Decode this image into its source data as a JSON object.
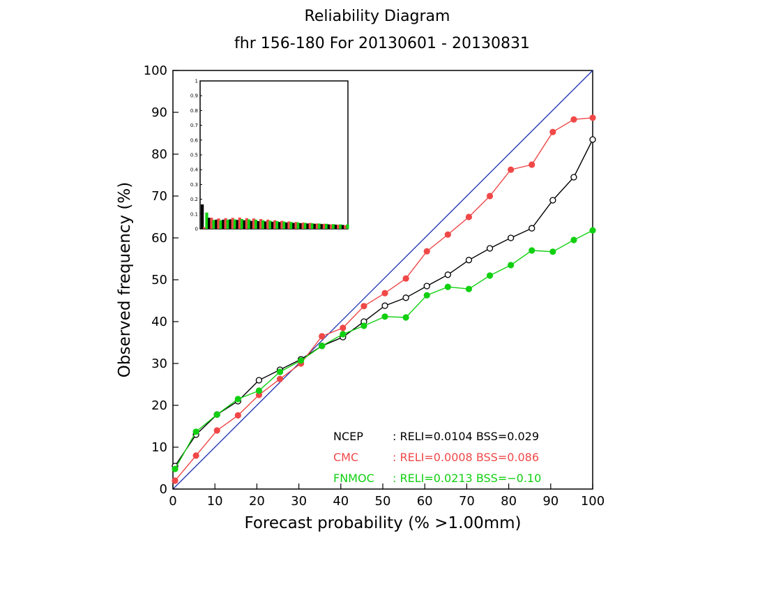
{
  "title": "Reliability Diagram",
  "subtitle": "fhr 156-180 For 20130601 - 20130831",
  "colors": {
    "ncep": "#000000",
    "cmc": "#f04848",
    "fnmoc": "#10d010",
    "diagonal": "#1a2fb0",
    "axis": "#000000"
  },
  "chart_data": {
    "type": "line",
    "xlabel": "Forecast probability (% >1.00mm)",
    "ylabel": "Observed frequency (%)",
    "xlim": [
      0,
      100
    ],
    "ylim": [
      0,
      100
    ],
    "xticks": [
      "0",
      "10",
      "20",
      "30",
      "40",
      "50",
      "60",
      "70",
      "80",
      "90",
      "100"
    ],
    "yticks": [
      "0",
      "10",
      "20",
      "30",
      "40",
      "50",
      "60",
      "70",
      "80",
      "90",
      "100"
    ],
    "x": [
      0.5,
      5.5,
      10.5,
      15.5,
      20.5,
      25.5,
      30.5,
      35.5,
      40.5,
      45.5,
      50.5,
      55.5,
      60.5,
      65.5,
      70.5,
      75.5,
      80.5,
      85.5,
      90.5,
      95.5,
      100
    ],
    "series": [
      {
        "name": "NCEP",
        "key": "ncep",
        "marker": "open-circle",
        "values": [
          5.5,
          13.0,
          17.8,
          21.0,
          26.0,
          28.5,
          31.0,
          34.2,
          36.3,
          40.0,
          43.8,
          45.7,
          48.5,
          51.2,
          54.7,
          57.5,
          60.0,
          62.3,
          69.0,
          74.5,
          83.5
        ]
      },
      {
        "name": "CMC",
        "key": "cmc",
        "marker": "filled-circle",
        "values": [
          2.0,
          8.0,
          14.0,
          17.6,
          22.5,
          26.3,
          30.0,
          36.5,
          38.5,
          43.7,
          46.8,
          50.3,
          56.8,
          60.8,
          65.0,
          70.0,
          76.3,
          77.5,
          85.3,
          88.3,
          88.7
        ]
      },
      {
        "name": "FNMOC",
        "key": "fnmoc",
        "marker": "filled-circle",
        "values": [
          4.8,
          13.7,
          17.8,
          21.5,
          23.5,
          28.0,
          30.7,
          34.2,
          37.0,
          39.0,
          41.2,
          41.0,
          46.3,
          48.3,
          47.8,
          51.0,
          53.5,
          57.0,
          56.7,
          59.5,
          61.8
        ]
      }
    ],
    "legend": {
      "placement": "bottom-right",
      "entries": [
        {
          "key": "ncep",
          "name": "NCEP",
          "text": ": RELI=0.0104  BSS=0.029"
        },
        {
          "key": "cmc",
          "name": "CMC",
          "text": ": RELI=0.0008  BSS=0.086"
        },
        {
          "key": "fnmoc",
          "name": "FNMOC",
          "text": ": RELI=0.0213  BSS=−0.10"
        }
      ]
    },
    "inset": {
      "type": "bar",
      "placement": "top-left",
      "ylim": [
        0,
        1
      ],
      "yticks": [
        "0",
        "0.1",
        "0.2",
        "0.3",
        "0.4",
        "0.5",
        "0.6",
        "0.7",
        "0.8",
        "0.9",
        "1"
      ],
      "series": [
        {
          "key": "ncep",
          "values": [
            0.165,
            0.075,
            0.062,
            0.062,
            0.064,
            0.06,
            0.058,
            0.054,
            0.052,
            0.05,
            0.048,
            0.046,
            0.043,
            0.04,
            0.038,
            0.036,
            0.034,
            0.032,
            0.03,
            0.028,
            0.026
          ]
        },
        {
          "key": "cmc",
          "values": [
            0.01,
            0.075,
            0.07,
            0.072,
            0.074,
            0.076,
            0.072,
            0.07,
            0.066,
            0.062,
            0.058,
            0.054,
            0.05,
            0.046,
            0.042,
            0.04,
            0.036,
            0.034,
            0.03,
            0.028,
            0.024
          ]
        },
        {
          "key": "fnmoc",
          "values": [
            0.11,
            0.06,
            0.058,
            0.062,
            0.064,
            0.066,
            0.064,
            0.062,
            0.058,
            0.055,
            0.052,
            0.049,
            0.046,
            0.043,
            0.04,
            0.038,
            0.036,
            0.034,
            0.032,
            0.03,
            0.03
          ]
        }
      ]
    }
  }
}
